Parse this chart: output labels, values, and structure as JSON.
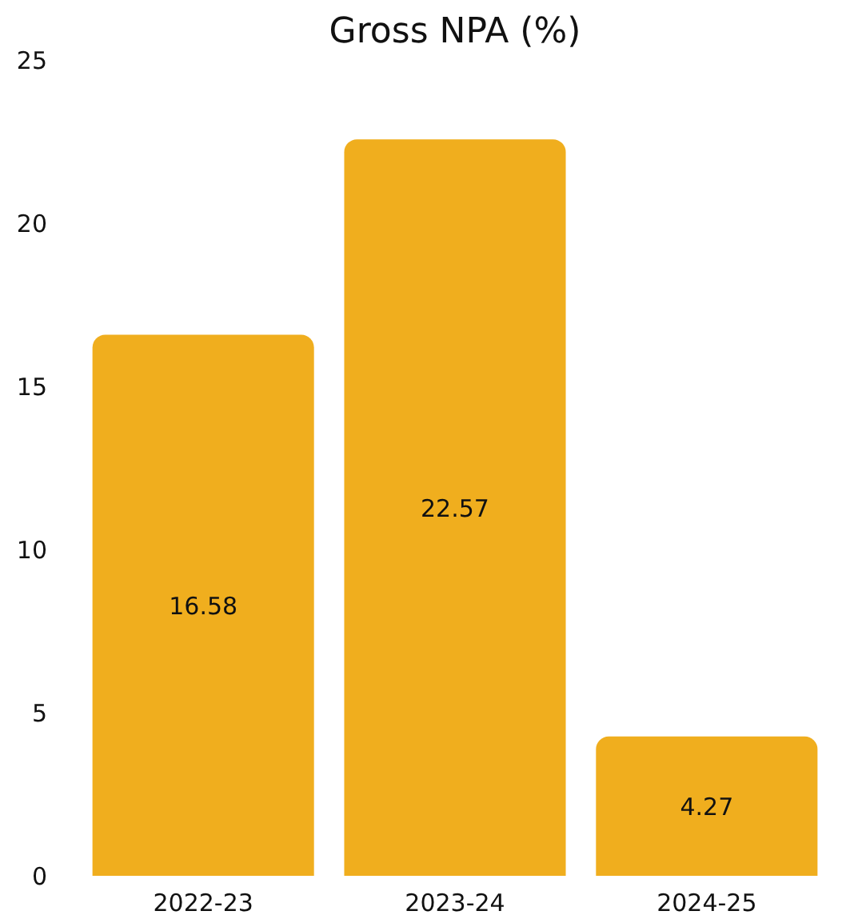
{
  "chart_data": {
    "type": "bar",
    "title": "Gross NPA (%)",
    "categories": [
      "2022-23",
      "2023-24",
      "2024-25"
    ],
    "values": [
      16.58,
      22.57,
      4.27
    ],
    "color": "#f0ae1e",
    "ylim": [
      0,
      25
    ],
    "yticks": [
      0,
      5,
      10,
      15,
      20,
      25
    ],
    "data_labels": true,
    "grid": false
  }
}
